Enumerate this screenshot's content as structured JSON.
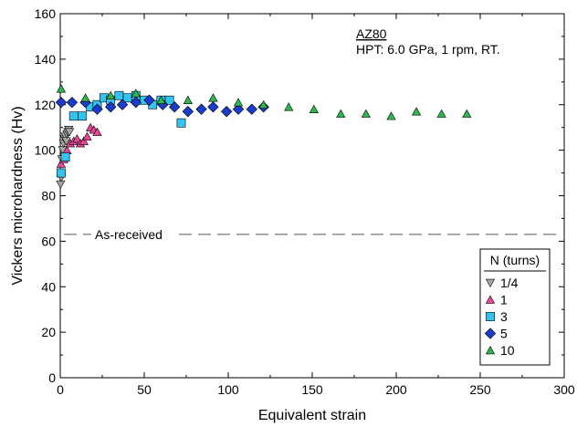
{
  "chart_data": {
    "type": "scatter",
    "title": "",
    "xlabel": "Equivalent strain",
    "ylabel": "Vickers microhardness (Hv)",
    "xlim": [
      0,
      300
    ],
    "ylim": [
      0,
      160
    ],
    "xticks": [
      0,
      50,
      100,
      150,
      200,
      250,
      300
    ],
    "yticks": [
      0,
      20,
      40,
      60,
      80,
      100,
      120,
      140,
      160
    ],
    "grid": false,
    "annotation_title": "AZ80",
    "annotation_subtitle": "HPT: 6.0 GPa, 1 rpm, RT.",
    "reference_line": {
      "label": "As-received",
      "y": 63
    },
    "legend": {
      "title": "N (turns)",
      "placement": "bottom-right"
    },
    "series": [
      {
        "name": "1/4",
        "marker": "triangle-down",
        "color": "#a6a6a6",
        "points": [
          [
            0.2,
            85
          ],
          [
            0.6,
            88
          ],
          [
            1.0,
            96
          ],
          [
            1.5,
            100
          ],
          [
            2.0,
            103
          ],
          [
            2.5,
            105
          ],
          [
            3.0,
            106
          ],
          [
            3.5,
            104
          ],
          [
            4.0,
            107
          ],
          [
            4.5,
            108
          ],
          [
            5.0,
            109
          ],
          [
            5.5,
            108
          ]
        ]
      },
      {
        "name": "1",
        "marker": "triangle-up",
        "color": "#e8479b",
        "points": [
          [
            0.5,
            94
          ],
          [
            2.0,
            96
          ],
          [
            4.0,
            100
          ],
          [
            6.0,
            103
          ],
          [
            8.0,
            104
          ],
          [
            10.0,
            105
          ],
          [
            12.0,
            103
          ],
          [
            14.0,
            104
          ],
          [
            16.0,
            106
          ],
          [
            18.0,
            110
          ],
          [
            20.0,
            109
          ],
          [
            22.0,
            108
          ]
        ]
      },
      {
        "name": "3",
        "marker": "square",
        "color": "#33c3f0",
        "points": [
          [
            0.5,
            90
          ],
          [
            3.0,
            97
          ],
          [
            8.0,
            115
          ],
          [
            13.0,
            115
          ],
          [
            18.0,
            119
          ],
          [
            22.0,
            120
          ],
          [
            26.0,
            123
          ],
          [
            30.0,
            122
          ],
          [
            35.0,
            124
          ],
          [
            40.0,
            123
          ],
          [
            45.0,
            124
          ],
          [
            50.0,
            122
          ],
          [
            55.0,
            120
          ],
          [
            60.0,
            122
          ],
          [
            65.0,
            122
          ],
          [
            72.0,
            112
          ]
        ]
      },
      {
        "name": "5",
        "marker": "diamond",
        "color": "#1a3ccc",
        "points": [
          [
            0.5,
            121
          ],
          [
            7.0,
            121
          ],
          [
            15.0,
            121
          ],
          [
            22.0,
            118
          ],
          [
            30.0,
            119
          ],
          [
            37.0,
            120
          ],
          [
            45.0,
            121
          ],
          [
            53.0,
            122
          ],
          [
            61.0,
            120
          ],
          [
            68.0,
            119
          ],
          [
            76.0,
            117
          ],
          [
            84.0,
            118
          ],
          [
            91.0,
            119
          ],
          [
            99.0,
            117
          ],
          [
            106.0,
            118
          ],
          [
            114.0,
            118
          ],
          [
            121.0,
            119
          ]
        ]
      },
      {
        "name": "10",
        "marker": "triangle-up",
        "color": "#2db84d",
        "points": [
          [
            0.5,
            127
          ],
          [
            15.0,
            123
          ],
          [
            30.0,
            124
          ],
          [
            45.0,
            125
          ],
          [
            60.0,
            122
          ],
          [
            76.0,
            122
          ],
          [
            91.0,
            123
          ],
          [
            106.0,
            121
          ],
          [
            121.0,
            120
          ],
          [
            136.0,
            119
          ],
          [
            151.0,
            118
          ],
          [
            167.0,
            116
          ],
          [
            182.0,
            116
          ],
          [
            197.0,
            115
          ],
          [
            212.0,
            117
          ],
          [
            227.0,
            116
          ],
          [
            242.0,
            116
          ]
        ]
      }
    ]
  }
}
